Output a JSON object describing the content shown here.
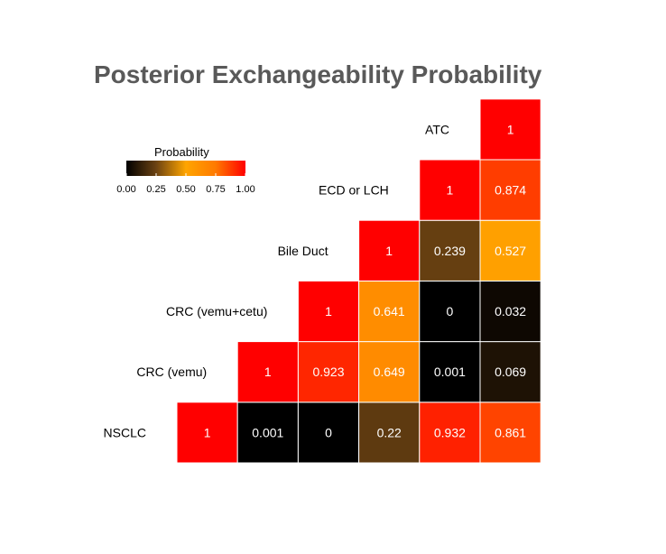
{
  "chart_data": {
    "type": "heatmap",
    "title": "Posterior Exchangeability Probability",
    "labels": [
      "NSCLC",
      "CRC (vemu)",
      "CRC (vemu+cetu)",
      "Bile Duct",
      "ECD or LCH",
      "ATC"
    ],
    "matrix": [
      [
        1,
        0.001,
        0,
        0.22,
        0.932,
        0.861
      ],
      [
        null,
        1,
        0.923,
        0.649,
        0.001,
        0.069
      ],
      [
        null,
        null,
        1,
        0.641,
        0,
        0.032
      ],
      [
        null,
        null,
        null,
        1,
        0.239,
        0.527
      ],
      [
        null,
        null,
        null,
        null,
        1,
        0.874
      ],
      [
        null,
        null,
        null,
        null,
        null,
        1
      ]
    ],
    "cell_text": [
      [
        "1",
        "0.001",
        "0",
        "0.22",
        "0.932",
        "0.861"
      ],
      [
        null,
        "1",
        "0.923",
        "0.649",
        "0.001",
        "0.069"
      ],
      [
        null,
        null,
        "1",
        "0.641",
        "0",
        "0.032"
      ],
      [
        null,
        null,
        null,
        "1",
        "0.239",
        "0.527"
      ],
      [
        null,
        null,
        null,
        null,
        "1",
        "0.874"
      ],
      [
        null,
        null,
        null,
        null,
        null,
        "1"
      ]
    ],
    "legend": {
      "title": "Probability",
      "ticks": [
        "0.00",
        "0.25",
        "0.50",
        "0.75",
        "1.00"
      ],
      "range": [
        0,
        1
      ],
      "position": "top-left"
    },
    "colors": {
      "low": "#000000",
      "mid": "#ffa500",
      "high": "#ff0000",
      "title": "#595959"
    }
  }
}
